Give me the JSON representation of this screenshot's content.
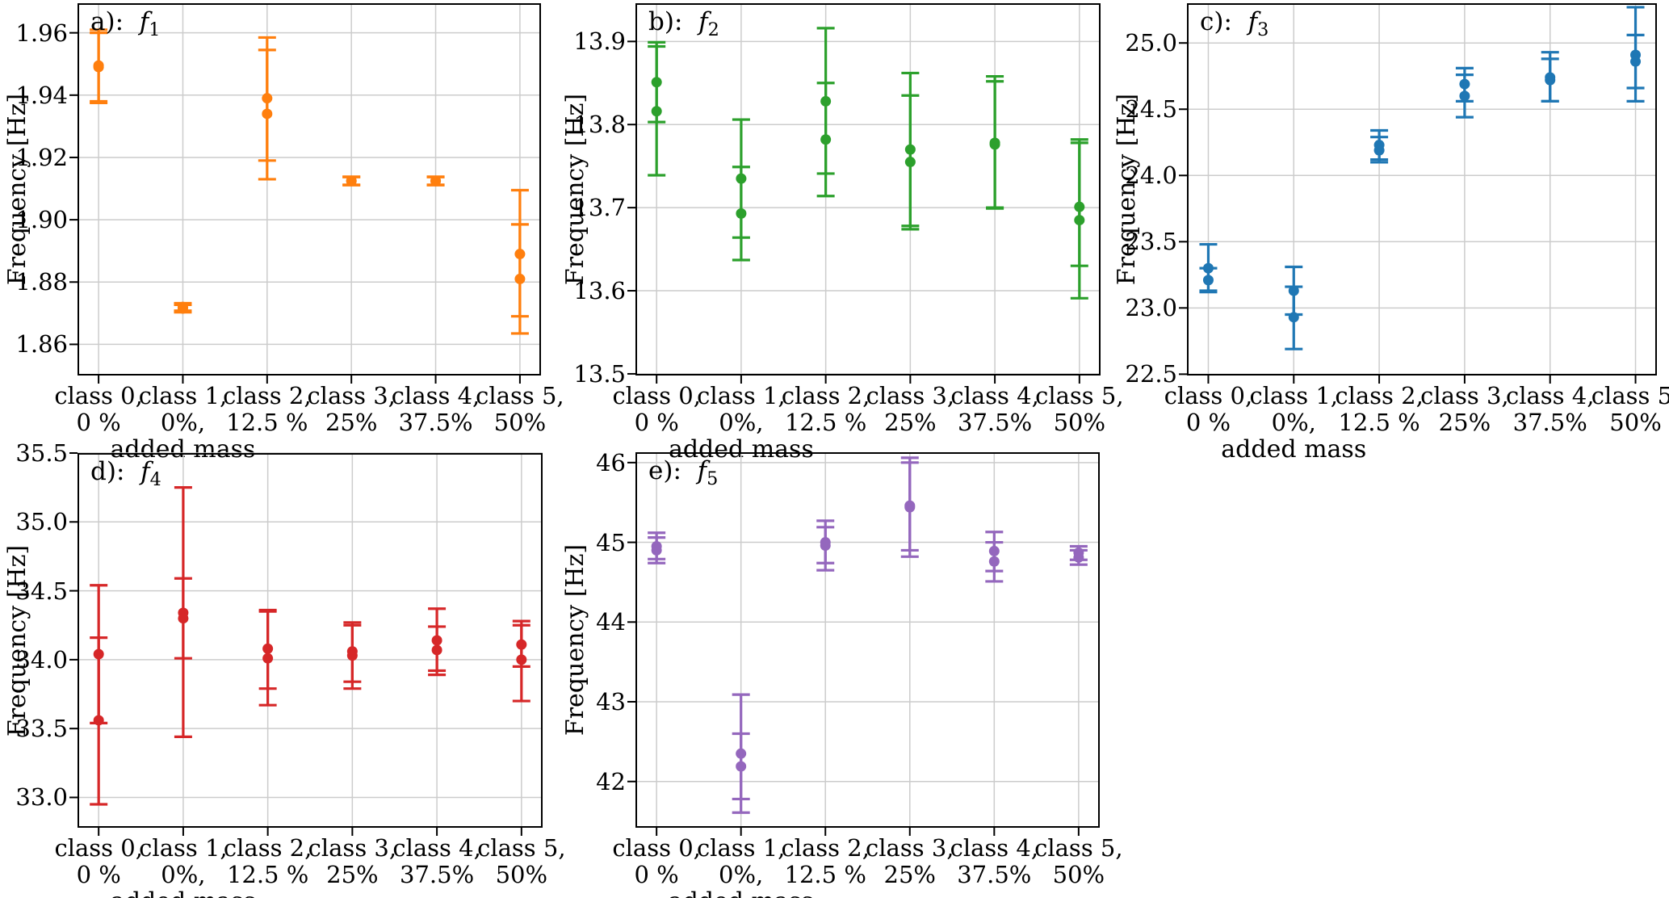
{
  "figure": {
    "background": "#ffffff",
    "grid_color": "#cccccc",
    "axis_color": "#000000"
  },
  "chart_data": {
    "type": "scatter",
    "subtype": "errorbar-small-multiples",
    "grid": true,
    "legend": "none",
    "ylabel": "Frequency [Hz]",
    "xlabel": "added mass",
    "xlabel_anchor_category": 1,
    "categories": [
      [
        "class 0,",
        "0 %"
      ],
      [
        "class 1,",
        "0%,"
      ],
      [
        "class 2,",
        "12.5 %"
      ],
      [
        "class 3,",
        "25%"
      ],
      [
        "class 4,",
        "37.5%"
      ],
      [
        "class 5,",
        "50%"
      ]
    ],
    "points_format": [
      "category_index",
      "y",
      "err_low",
      "err_high"
    ],
    "panels": [
      {
        "id": "f1",
        "panel_label": "a):",
        "f_symbol": "f",
        "f_sub": "1",
        "color": "#ff7f0e",
        "ylim": [
          1.85,
          1.9695
        ],
        "yticks": [
          1.86,
          1.88,
          1.9,
          1.92,
          1.94,
          1.96
        ],
        "ytick_decimals": 2,
        "points": [
          [
            0,
            1.9495,
            1.9375,
            1.961
          ],
          [
            0,
            1.949,
            1.938,
            1.96
          ],
          [
            1,
            1.872,
            1.8708,
            1.8732
          ],
          [
            1,
            1.8715,
            1.8703,
            1.8727
          ],
          [
            2,
            1.939,
            1.919,
            1.9585
          ],
          [
            2,
            1.934,
            1.913,
            1.9545
          ],
          [
            3,
            1.9125,
            1.9112,
            1.9138
          ],
          [
            3,
            1.9124,
            1.9111,
            1.9137
          ],
          [
            4,
            1.9125,
            1.9112,
            1.9138
          ],
          [
            4,
            1.9124,
            1.9111,
            1.9137
          ],
          [
            5,
            1.889,
            1.869,
            1.9095
          ],
          [
            5,
            1.881,
            1.8635,
            1.8985
          ]
        ]
      },
      {
        "id": "f2",
        "panel_label": "b):",
        "f_symbol": "f",
        "f_sub": "2",
        "color": "#2ca02c",
        "ylim": [
          13.498,
          13.946
        ],
        "yticks": [
          13.5,
          13.6,
          13.7,
          13.8,
          13.9
        ],
        "ytick_decimals": 1,
        "points": [
          [
            0,
            13.851,
            13.803,
            13.899
          ],
          [
            0,
            13.816,
            13.739,
            13.894
          ],
          [
            1,
            13.735,
            13.664,
            13.806
          ],
          [
            1,
            13.693,
            13.637,
            13.749
          ],
          [
            2,
            13.828,
            13.741,
            13.916
          ],
          [
            2,
            13.782,
            13.714,
            13.85
          ],
          [
            3,
            13.77,
            13.678,
            13.862
          ],
          [
            3,
            13.755,
            13.674,
            13.835
          ],
          [
            4,
            13.778,
            13.7,
            13.858
          ],
          [
            4,
            13.776,
            13.699,
            13.852
          ],
          [
            5,
            13.701,
            13.63,
            13.782
          ],
          [
            5,
            13.685,
            13.591,
            13.778
          ]
        ]
      },
      {
        "id": "f3",
        "panel_label": "c):",
        "f_symbol": "f",
        "f_sub": "3",
        "color": "#1f77b4",
        "ylim": [
          22.49,
          25.3
        ],
        "yticks": [
          22.5,
          23.0,
          23.5,
          24.0,
          24.5,
          25.0
        ],
        "ytick_decimals": 1,
        "points": [
          [
            0,
            23.3,
            23.12,
            23.48
          ],
          [
            0,
            23.21,
            23.13,
            23.3
          ],
          [
            1,
            23.13,
            22.95,
            23.31
          ],
          [
            1,
            22.93,
            22.69,
            23.16
          ],
          [
            2,
            24.23,
            24.12,
            24.34
          ],
          [
            2,
            24.19,
            24.1,
            24.29
          ],
          [
            3,
            24.69,
            24.56,
            24.81
          ],
          [
            3,
            24.6,
            24.44,
            24.76
          ],
          [
            4,
            24.74,
            24.56,
            24.93
          ],
          [
            4,
            24.72,
            24.56,
            24.88
          ],
          [
            5,
            24.91,
            24.56,
            25.27
          ],
          [
            5,
            24.86,
            24.66,
            25.06
          ]
        ]
      },
      {
        "id": "f4",
        "panel_label": "d):",
        "f_symbol": "f",
        "f_sub": "4",
        "color": "#d62728",
        "ylim": [
          32.78,
          35.5
        ],
        "yticks": [
          33.0,
          33.5,
          34.0,
          34.5,
          35.0,
          35.5
        ],
        "ytick_decimals": 1,
        "points": [
          [
            0,
            34.04,
            33.54,
            34.54
          ],
          [
            0,
            33.56,
            32.95,
            34.16
          ],
          [
            1,
            34.34,
            33.44,
            35.25
          ],
          [
            1,
            34.3,
            34.01,
            34.59
          ],
          [
            2,
            34.08,
            33.79,
            34.36
          ],
          [
            2,
            34.01,
            33.67,
            34.35
          ],
          [
            3,
            34.06,
            33.84,
            34.27
          ],
          [
            3,
            34.03,
            33.79,
            34.25
          ],
          [
            4,
            34.14,
            33.92,
            34.37
          ],
          [
            4,
            34.07,
            33.89,
            34.24
          ],
          [
            5,
            34.11,
            33.95,
            34.28
          ],
          [
            5,
            34.0,
            33.7,
            34.25
          ]
        ]
      },
      {
        "id": "f5",
        "panel_label": "e):",
        "f_symbol": "f",
        "f_sub": "5",
        "color": "#9467bd",
        "ylim": [
          41.42,
          46.13
        ],
        "yticks": [
          42,
          43,
          44,
          45,
          46
        ],
        "ytick_decimals": 0,
        "points": [
          [
            0,
            44.95,
            44.79,
            45.12
          ],
          [
            0,
            44.9,
            44.74,
            45.06
          ],
          [
            1,
            42.35,
            41.61,
            43.09
          ],
          [
            1,
            42.19,
            41.78,
            42.6
          ],
          [
            2,
            45.0,
            44.74,
            45.27
          ],
          [
            2,
            44.96,
            44.65,
            45.19
          ],
          [
            3,
            45.46,
            44.9,
            46.06
          ],
          [
            3,
            45.44,
            44.82,
            46.0
          ],
          [
            4,
            44.89,
            44.64,
            45.13
          ],
          [
            4,
            44.76,
            44.51,
            45.0
          ],
          [
            5,
            44.87,
            44.78,
            44.95
          ],
          [
            5,
            44.81,
            44.72,
            44.9
          ]
        ]
      }
    ]
  }
}
